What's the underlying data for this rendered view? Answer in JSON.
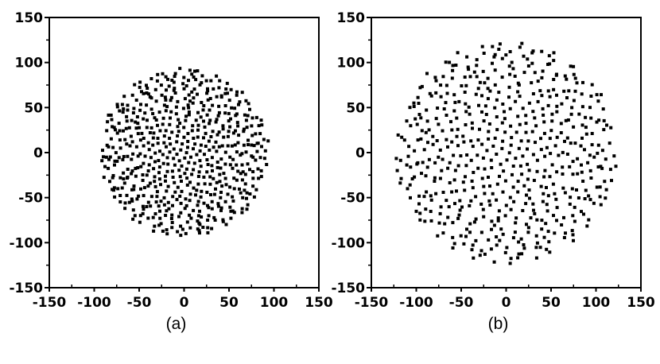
{
  "chart_data": [
    {
      "type": "scatter",
      "panel_label": "(a)",
      "xlim": [
        -150,
        150
      ],
      "ylim": [
        -150,
        150
      ],
      "xticks": [
        "-150",
        "-100",
        "-50",
        "0",
        "50",
        "100",
        "150"
      ],
      "yticks": [
        "150",
        "100",
        "50",
        "0",
        "-50",
        "-100",
        "-150"
      ],
      "grid": false,
      "marker": "square",
      "point_color": "#000000",
      "disk_radius": 95,
      "point_count": 600
    },
    {
      "type": "scatter",
      "panel_label": "(b)",
      "xlim": [
        -150,
        150
      ],
      "ylim": [
        -150,
        150
      ],
      "xticks": [
        "-150",
        "-100",
        "-50",
        "0",
        "50",
        "100",
        "150"
      ],
      "yticks": [
        "150",
        "100",
        "50",
        "0",
        "-50",
        "-100",
        "-150"
      ],
      "grid": false,
      "marker": "square",
      "point_color": "#000000",
      "disk_radius": 125,
      "point_count": 560
    }
  ]
}
